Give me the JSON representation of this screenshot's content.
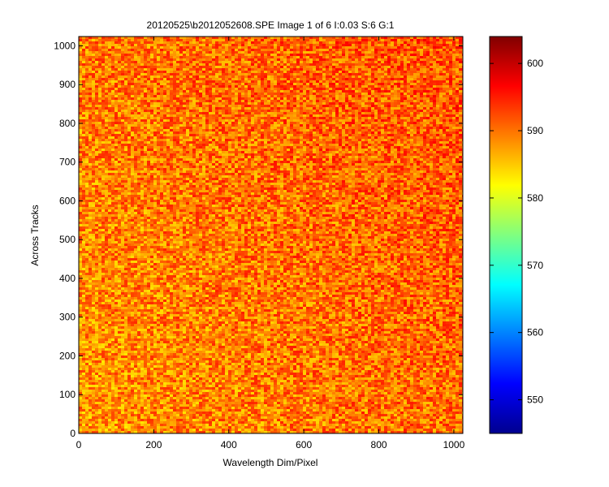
{
  "chart_data": {
    "type": "heatmap",
    "title": "20120525\\b2012052608.SPE  Image 1 of 6  I:0.03  S:6  G:1",
    "xlabel": "Wavelength Dim/Pixel",
    "ylabel": "Across Tracks",
    "xlim": [
      0,
      1024
    ],
    "ylim": [
      0,
      1024
    ],
    "xticks": [
      0,
      200,
      400,
      600,
      800,
      1000
    ],
    "yticks": [
      0,
      100,
      200,
      300,
      400,
      500,
      600,
      700,
      800,
      900,
      1000
    ],
    "xtick_labels": [
      "0",
      "200",
      "400",
      "600",
      "800",
      "1000"
    ],
    "ytick_labels": [
      "0",
      "100",
      "200",
      "300",
      "400",
      "500",
      "600",
      "700",
      "800",
      "900",
      "1000"
    ],
    "colorbar": {
      "colormap": "jet",
      "range": [
        545,
        604
      ],
      "ticks": [
        550,
        560,
        570,
        580,
        590,
        600
      ],
      "tick_labels": [
        "550",
        "560",
        "570",
        "580",
        "590",
        "600"
      ]
    },
    "value_description_summary": {
      "typical_min": 584,
      "typical_max": 596,
      "mean_left_bottom": 588,
      "mean_right_top": 592
    }
  }
}
